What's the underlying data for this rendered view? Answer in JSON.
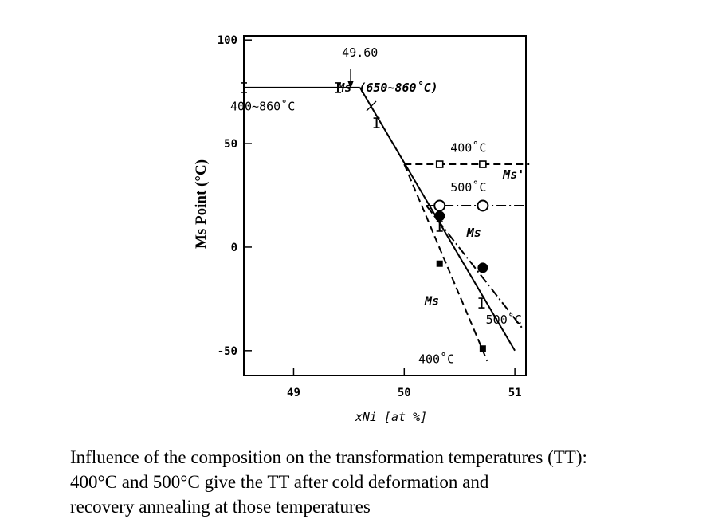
{
  "chart_data": {
    "type": "line",
    "ylabel": "Ms Point (°C)",
    "xlabel": "xNi [at %]",
    "xlim": [
      48.55,
      51.1
    ],
    "ylim": [
      -62,
      102
    ],
    "x_ticks": [
      49,
      50,
      51
    ],
    "y_ticks": [
      100,
      50,
      0,
      -50
    ],
    "grid": false,
    "series": [
      {
        "name": "400~860°C",
        "style": "solid",
        "x": [
          48.55,
          49.6
        ],
        "y": [
          77,
          77
        ]
      },
      {
        "name": "Ms (650~860°C)",
        "style": "solid",
        "x": [
          49.6,
          51.0
        ],
        "y": [
          77,
          -50
        ]
      },
      {
        "name": "400°C",
        "style": "dashed",
        "x": [
          50.0,
          51.13
        ],
        "y": [
          40,
          40
        ]
      },
      {
        "name": "400°C",
        "style": "dashed",
        "x": [
          50.0,
          50.75
        ],
        "y": [
          40,
          -55
        ]
      },
      {
        "name": "500°C",
        "style": "dashdot",
        "x": [
          50.2,
          51.1
        ],
        "y": [
          20,
          20
        ]
      },
      {
        "name": "500°C",
        "style": "dashdot",
        "x": [
          50.2,
          51.08
        ],
        "y": [
          20,
          -40
        ]
      }
    ],
    "markers": [
      {
        "x": 48.55,
        "y": 77,
        "kind": "errorbar"
      },
      {
        "x": 49.4,
        "y": 77,
        "kind": "errorbar"
      },
      {
        "x": 49.75,
        "y": 60,
        "kind": "errorbar"
      },
      {
        "x": 50.32,
        "y": 10,
        "kind": "errorbar"
      },
      {
        "x": 50.7,
        "y": -27,
        "kind": "errorbar"
      },
      {
        "x": 50.32,
        "y": 40,
        "kind": "open-square"
      },
      {
        "x": 50.71,
        "y": 40,
        "kind": "open-square"
      },
      {
        "x": 50.32,
        "y": 20,
        "kind": "open-circle"
      },
      {
        "x": 50.71,
        "y": 20,
        "kind": "open-circle"
      },
      {
        "x": 50.32,
        "y": 15,
        "kind": "filled-circle"
      },
      {
        "x": 50.71,
        "y": -10,
        "kind": "filled-circle"
      },
      {
        "x": 50.32,
        "y": -8,
        "kind": "filled-square"
      },
      {
        "x": 50.71,
        "y": -49,
        "kind": "filled-square"
      }
    ],
    "annotations": [
      {
        "text": "49.60",
        "x": 49.6,
        "y": 92
      },
      {
        "text": "400~860˚C",
        "x": 48.72,
        "y": 66
      },
      {
        "text": "Ms (650~860˚C)",
        "x": 49.85,
        "y": 75
      },
      {
        "text": "400˚C",
        "x": 50.58,
        "y": 46
      },
      {
        "text": "Ms'",
        "x": 50.99,
        "y": 33
      },
      {
        "text": "500˚C",
        "x": 50.58,
        "y": 27
      },
      {
        "text": "Ms",
        "x": 50.63,
        "y": 5
      },
      {
        "text": "Ms",
        "x": 50.25,
        "y": -28
      },
      {
        "text": "500˚C",
        "x": 50.9,
        "y": -37
      },
      {
        "text": "400˚C",
        "x": 50.29,
        "y": -56
      }
    ]
  },
  "caption": {
    "line1": "Influence of the composition on the transformation temperatures (TT):",
    "line2": "400°C and 500°C give the TT after cold deformation and",
    "line3": "recovery annealing at those temperatures"
  }
}
